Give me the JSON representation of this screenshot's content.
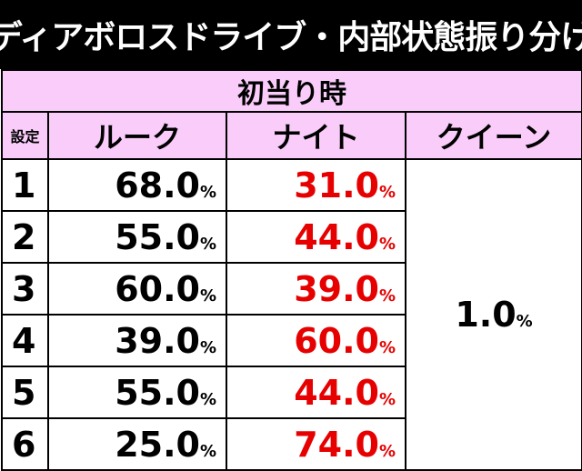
{
  "title": "ディアボロスドライブ・内部状態振り分け",
  "subtitle": "初当り時",
  "headers": {
    "setting": "設定",
    "rook": "ルーク",
    "knight": "ナイト",
    "queen": "クイーン"
  },
  "rows": [
    {
      "setting": "1",
      "rook": "68.0",
      "knight": "31.0"
    },
    {
      "setting": "2",
      "rook": "55.0",
      "knight": "44.0"
    },
    {
      "setting": "3",
      "rook": "60.0",
      "knight": "39.0"
    },
    {
      "setting": "4",
      "rook": "39.0",
      "knight": "60.0"
    },
    {
      "setting": "5",
      "rook": "55.0",
      "knight": "44.0"
    },
    {
      "setting": "6",
      "rook": "25.0",
      "knight": "74.0"
    }
  ],
  "queen_value": "1.0",
  "percent_sign": "%",
  "colors": {
    "header_bg": "#f9ccf9",
    "title_bg": "#000000",
    "knight_text": "#e60000"
  }
}
